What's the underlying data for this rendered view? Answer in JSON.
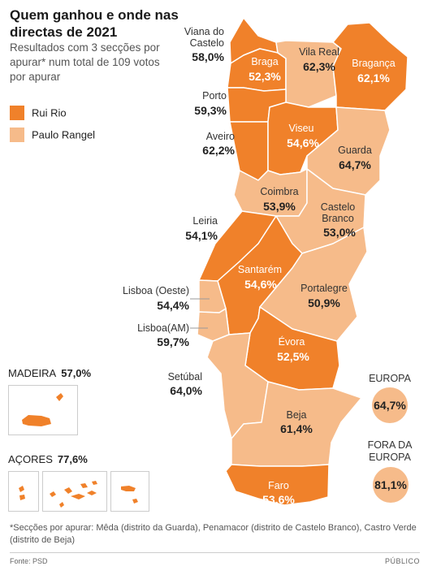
{
  "title": "Quem ganhou e onde nas directas de 2021",
  "subtitle": "Resultados com 3 secções por apurar* num total de 109 votos por apurar",
  "legend": [
    {
      "label": "Rui Rio",
      "color": "#f0812a"
    },
    {
      "label": "Paulo Rangel",
      "color": "#f6bb8a"
    }
  ],
  "districts": {
    "viana": {
      "name": "Viana do Castelo",
      "value": "58,0%",
      "winner": "Rui Rio"
    },
    "braga": {
      "name": "Braga",
      "value": "52,3%",
      "winner": "Rui Rio"
    },
    "vilareal": {
      "name": "Vila Real",
      "value": "62,3%",
      "winner": "Paulo Rangel"
    },
    "braganca": {
      "name": "Bragança",
      "value": "62,1%",
      "winner": "Rui Rio"
    },
    "porto": {
      "name": "Porto",
      "value": "59,3%",
      "winner": "Rui Rio"
    },
    "aveiro": {
      "name": "Aveiro",
      "value": "62,2%",
      "winner": "Rui Rio"
    },
    "viseu": {
      "name": "Viseu",
      "value": "54,6%",
      "winner": "Rui Rio"
    },
    "guarda": {
      "name": "Guarda",
      "value": "64,7%",
      "winner": "Paulo Rangel"
    },
    "coimbra": {
      "name": "Coimbra",
      "value": "53,9%",
      "winner": "Paulo Rangel"
    },
    "castelobranco": {
      "name": "Castelo Branco",
      "value": "53,0%",
      "winner": "Paulo Rangel"
    },
    "leiria": {
      "name": "Leiria",
      "value": "54,1%",
      "winner": "Rui Rio"
    },
    "santarem": {
      "name": "Santarém",
      "value": "54,6%",
      "winner": "Rui Rio"
    },
    "portalegre": {
      "name": "Portalegre",
      "value": "50,9%",
      "winner": "Paulo Rangel"
    },
    "lisboaoeste": {
      "name": "Lisboa (Oeste)",
      "value": "54,4%",
      "winner": "Paulo Rangel"
    },
    "lisboaam": {
      "name": "Lisboa(AM)",
      "value": "59,7%",
      "winner": "Paulo Rangel"
    },
    "evora": {
      "name": "Évora",
      "value": "52,5%",
      "winner": "Rui Rio"
    },
    "setubal": {
      "name": "Setúbal",
      "value": "64,0%",
      "winner": "Paulo Rangel"
    },
    "beja": {
      "name": "Beja",
      "value": "61,4%",
      "winner": "Paulo Rangel"
    },
    "faro": {
      "name": "Faro",
      "value": "53,6%",
      "winner": "Rui Rio"
    }
  },
  "europa": {
    "name": "EUROPA",
    "value": "64,7%",
    "winner": "Paulo Rangel"
  },
  "fora_europa": {
    "name_line1": "FORA DA",
    "name_line2": "EUROPA",
    "value": "81,1%",
    "winner": "Paulo Rangel"
  },
  "madeira": {
    "name": "MADEIRA",
    "value": "57,0%",
    "winner": "Rui Rio"
  },
  "acores": {
    "name": "AÇORES",
    "value": "77,6%",
    "winner": "Rui Rio"
  },
  "footnote": "*Secções por apurar: Mêda (distrito da Guarda), Penamacor (distrito de Castelo Branco), Castro Verde (distrito de Beja)",
  "source": "Fonte: PSD",
  "brand": "PÚBLICO"
}
